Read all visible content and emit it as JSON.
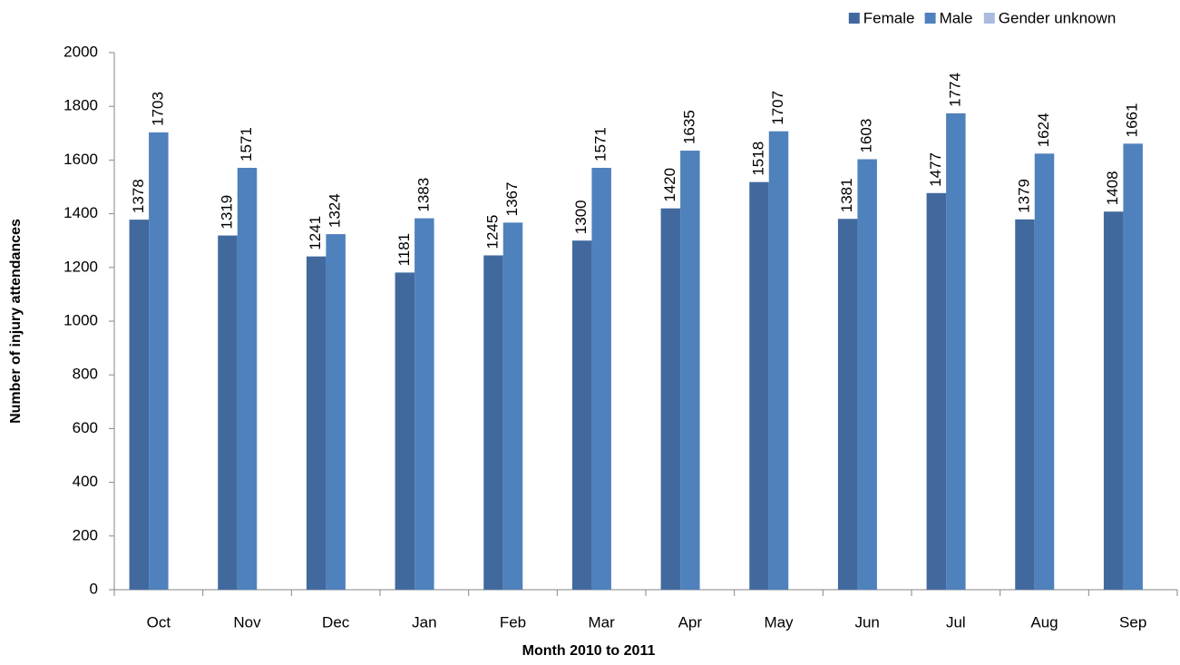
{
  "chart_data": {
    "type": "bar",
    "categories": [
      "Oct",
      "Nov",
      "Dec",
      "Jan",
      "Feb",
      "Mar",
      "Apr",
      "May",
      "Jun",
      "Jul",
      "Aug",
      "Sep"
    ],
    "series": [
      {
        "name": "Female",
        "color": "#41699e",
        "values": [
          1378,
          1319,
          1241,
          1181,
          1245,
          1300,
          1420,
          1518,
          1381,
          1477,
          1379,
          1408
        ]
      },
      {
        "name": "Male",
        "color": "#4f81bd",
        "values": [
          1703,
          1571,
          1324,
          1383,
          1367,
          1571,
          1635,
          1707,
          1603,
          1774,
          1624,
          1661
        ]
      },
      {
        "name": "Gender unknown",
        "color": "#a9bce0",
        "values": [
          null,
          null,
          null,
          null,
          null,
          null,
          null,
          null,
          null,
          null,
          null,
          null
        ]
      }
    ],
    "x_label": "Month 2010 to 2011",
    "y_label": "Number of injury attendances",
    "ylim": [
      0,
      2000
    ],
    "yticks": [
      0,
      200,
      400,
      600,
      800,
      1000,
      1200,
      1400,
      1600,
      1800,
      2000
    ],
    "legend": "top-right",
    "grid": false
  }
}
